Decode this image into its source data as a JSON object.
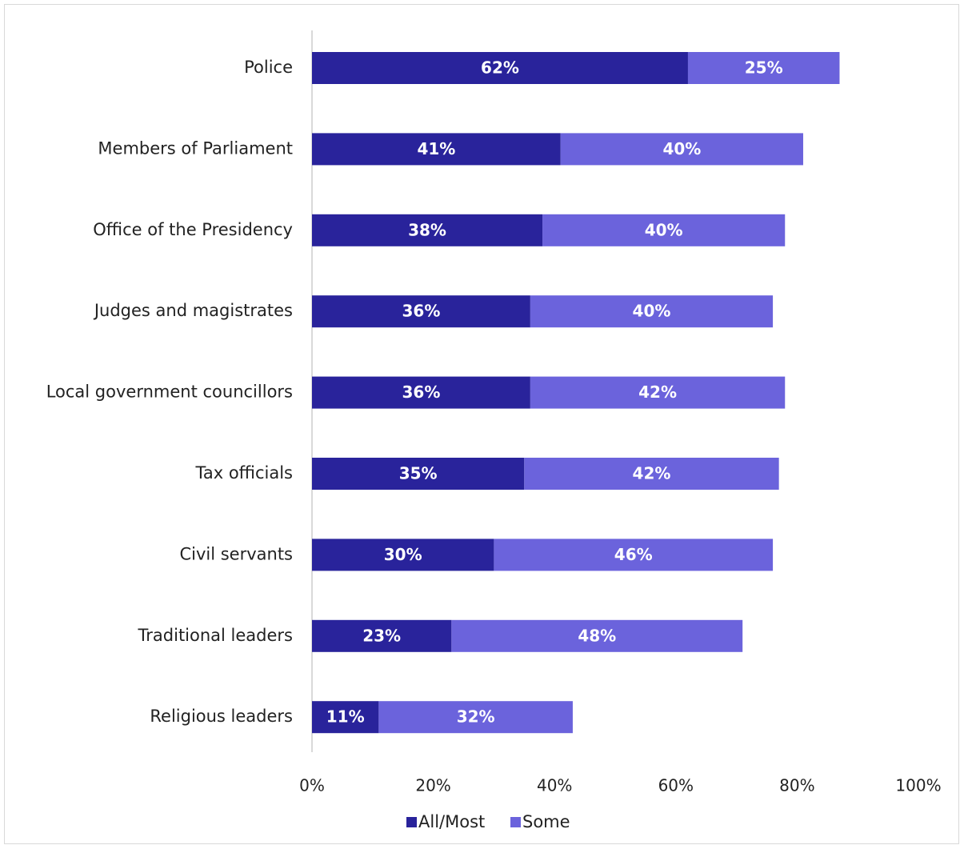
{
  "chart_data": {
    "type": "bar",
    "orientation": "horizontal",
    "stacked": true,
    "categories": [
      "Police",
      "Members of Parliament",
      "Office of the Presidency",
      "Judges and magistrates",
      "Local government councillors",
      "Tax officials",
      "Civil servants",
      "Traditional leaders",
      "Religious leaders"
    ],
    "series": [
      {
        "name": "All/Most",
        "color": "#29239b",
        "values": [
          62,
          41,
          38,
          36,
          36,
          35,
          30,
          23,
          11
        ],
        "labels": [
          "62%",
          "41%",
          "38%",
          "36%",
          "36%",
          "35%",
          "30%",
          "23%",
          "11%"
        ]
      },
      {
        "name": "Some",
        "color": "#6b63dc",
        "values": [
          25,
          40,
          40,
          40,
          42,
          42,
          46,
          48,
          32
        ],
        "labels": [
          "25%",
          "40%",
          "40%",
          "40%",
          "42%",
          "42%",
          "46%",
          "48%",
          "32%"
        ]
      }
    ],
    "xlim": [
      0,
      100
    ],
    "xticks": [
      "0%",
      "20%",
      "40%",
      "60%",
      "80%",
      "100%"
    ],
    "title": "",
    "xlabel": "",
    "ylabel": "",
    "grid": false,
    "legend": "bottom"
  }
}
